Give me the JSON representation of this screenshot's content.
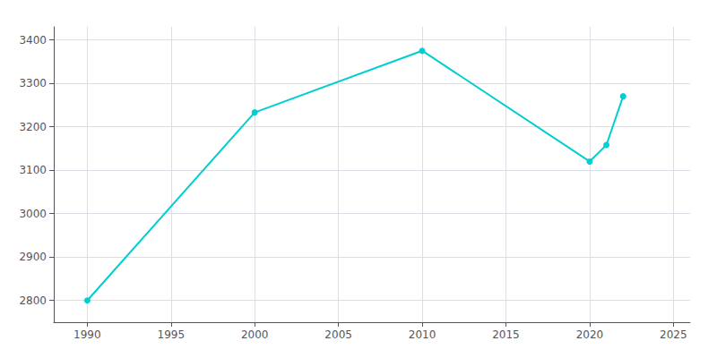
{
  "chart_data": {
    "type": "line",
    "x": [
      1990,
      2000,
      2010,
      2020,
      2021,
      2022
    ],
    "values": [
      2800,
      3233,
      3375,
      3120,
      3158,
      3270
    ],
    "color": "#00CED1",
    "marker": "circle",
    "xlim": [
      1988,
      2026
    ],
    "ylim": [
      2750,
      3430
    ],
    "xticks": [
      1990,
      1995,
      2000,
      2005,
      2010,
      2015,
      2020,
      2025
    ],
    "yticks": [
      2800,
      2900,
      3000,
      3100,
      3200,
      3300,
      3400
    ],
    "grid": true
  }
}
